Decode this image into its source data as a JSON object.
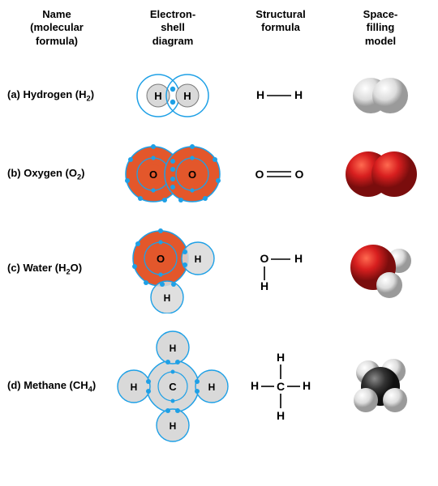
{
  "headers": {
    "c1": "Name\n(molecular\nformula)",
    "c2": "Electron-\nshell\ndiagram",
    "c3": "Structural\nformula",
    "c4": "Space-\nfilling\nmodel"
  },
  "rows": [
    {
      "label_prefix": "(a) Hydrogen (H",
      "sub": "2",
      "label_suffix": ")",
      "structural_type": "single",
      "s_left": "H",
      "s_right": "H"
    },
    {
      "label_prefix": "(b) Oxygen (O",
      "sub": "2",
      "label_suffix": ")",
      "structural_type": "double",
      "s_left": "O",
      "s_right": "O"
    },
    {
      "label_prefix": "(c) Water (H",
      "sub": "2",
      "label_suffix": "O)",
      "structural_type": "water",
      "s_O": "O",
      "s_H": "H"
    },
    {
      "label_prefix": "(d) Methane (CH",
      "sub": "4",
      "label_suffix": ")",
      "structural_type": "methane",
      "s_C": "C",
      "s_H": "H"
    }
  ],
  "colors": {
    "text": "#000000",
    "shellStroke": "#1ea0e6",
    "electron": "#1ea0e6",
    "hFill": "#d9d9d9",
    "oFill": "#e3572b",
    "carbonSF": "#2d2d2d",
    "oxygenSF": "#c91818",
    "hydrogenSF": "#e9e9e9",
    "hydrogenSFhl": "#ffffff",
    "bond": "#000000"
  },
  "sizes": {
    "header_fs": 13,
    "row_fs": 13,
    "struct_fs": 14
  }
}
